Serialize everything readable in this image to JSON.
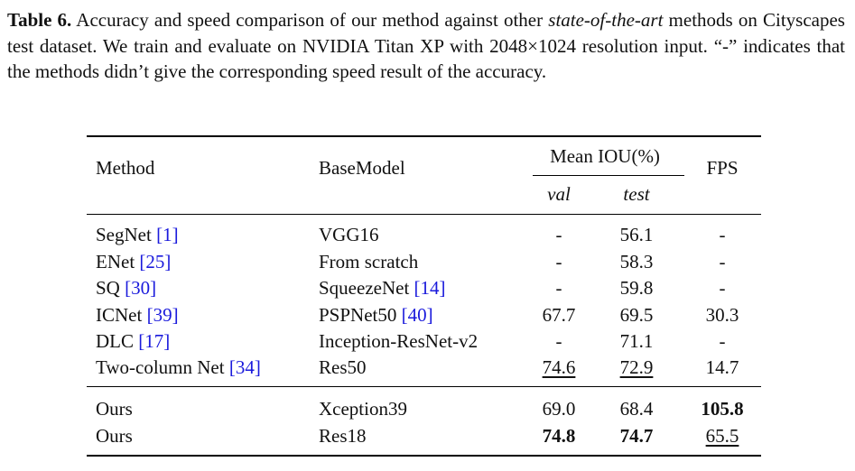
{
  "caption": {
    "label": "Table 6.",
    "text_1": " Accuracy and speed comparison of our method against other ",
    "italic": "state-of-the-art",
    "text_2": " methods on Cityscapes test dataset. We train and evaluate on NVIDIA Titan XP with 2048×1024 resolution input. “-” indicates that the methods didn’t give the corresponding speed result of the accuracy."
  },
  "headers": {
    "method": "Method",
    "basemodel": "BaseModel",
    "miou": "Mean IOU(%)",
    "val": "val",
    "test": "test",
    "fps": "FPS"
  },
  "rows": [
    {
      "method": "SegNet ",
      "method_ref": "[1]",
      "base": "VGG16",
      "base_ref": "",
      "val": "-",
      "test": "56.1",
      "fps": "-"
    },
    {
      "method": "ENet ",
      "method_ref": "[25]",
      "base": "From scratch",
      "base_ref": "",
      "val": "-",
      "test": "58.3",
      "fps": "-"
    },
    {
      "method": "SQ ",
      "method_ref": "[30]",
      "base": "SqueezeNet ",
      "base_ref": "[14]",
      "val": "-",
      "test": "59.8",
      "fps": "-"
    },
    {
      "method": "ICNet ",
      "method_ref": "[39]",
      "base": "PSPNet50 ",
      "base_ref": "[40]",
      "val": "67.7",
      "test": "69.5",
      "fps": "30.3"
    },
    {
      "method": "DLC ",
      "method_ref": "[17]",
      "base": "Inception-ResNet-v2",
      "base_ref": "",
      "val": "-",
      "test": "71.1",
      "fps": "-"
    },
    {
      "method": "Two-column Net ",
      "method_ref": "[34]",
      "base": "Res50",
      "base_ref": "",
      "val": "74.6",
      "test": "72.9",
      "fps": "14.7"
    }
  ],
  "ours": [
    {
      "method": "Ours",
      "base": "Xception39",
      "val": "69.0",
      "test": "68.4",
      "fps": "105.8"
    },
    {
      "method": "Ours",
      "base": "Res18",
      "val": "74.8",
      "test": "74.7",
      "fps": "65.5"
    }
  ]
}
